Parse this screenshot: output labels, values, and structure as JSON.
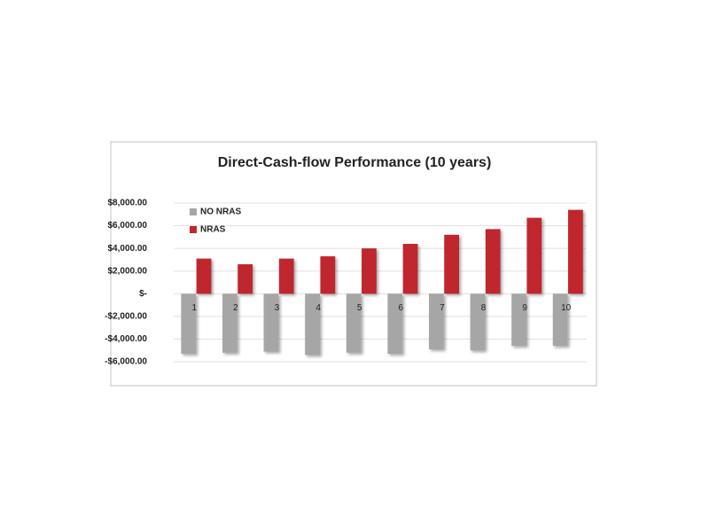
{
  "chart_data": {
    "type": "bar",
    "title": "Direct-Cash-flow Performance (10 years)",
    "categories": [
      "1",
      "2",
      "3",
      "4",
      "5",
      "6",
      "7",
      "8",
      "9",
      "10"
    ],
    "series": [
      {
        "name": "NO NRAS",
        "color": "#a6a6a6",
        "values": [
          -5300,
          -5200,
          -5100,
          -5400,
          -5200,
          -5300,
          -4900,
          -5000,
          -4600,
          -4600
        ]
      },
      {
        "name": "NRAS",
        "color": "#c0272d",
        "values": [
          3100,
          2600,
          3100,
          3300,
          4000,
          4400,
          5200,
          5700,
          6700,
          7400
        ]
      }
    ],
    "ylim": [
      -6000,
      8000
    ],
    "yticks": [
      {
        "value": -6000,
        "label": "-$6,000.00"
      },
      {
        "value": -4000,
        "label": "-$4,000.00"
      },
      {
        "value": -2000,
        "label": "-$2,000.00"
      },
      {
        "value": 0,
        "label": "$-"
      },
      {
        "value": 2000,
        "label": "$2,000.00"
      },
      {
        "value": 4000,
        "label": "$4,000.00"
      },
      {
        "value": 6000,
        "label": "$6,000.00"
      },
      {
        "value": 8000,
        "label": "$8,000.00"
      }
    ],
    "grid": true,
    "legend": "upper-left"
  }
}
